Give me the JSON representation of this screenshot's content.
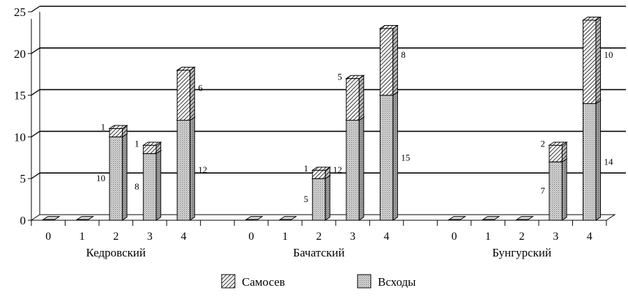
{
  "chart_data": {
    "type": "bar",
    "stacked": true,
    "three_d": true,
    "grid": true,
    "ylim": [
      0,
      25
    ],
    "yticks": [
      0,
      5,
      10,
      15,
      20,
      25
    ],
    "legend_position": "bottom",
    "groups": [
      {
        "name": "Кедровский",
        "categories": [
          "0",
          "1",
          "2",
          "3",
          "4"
        ],
        "Всходы": [
          0,
          0,
          10,
          8,
          12
        ],
        "Самосев": [
          0,
          0,
          1,
          1,
          6
        ]
      },
      {
        "name": "Бачатский",
        "categories": [
          "0",
          "1",
          "2",
          "3",
          "4"
        ],
        "Всходы": [
          0,
          0,
          5,
          12,
          15
        ],
        "Самосев": [
          0,
          0,
          1,
          5,
          8
        ]
      },
      {
        "name": "Бунгурский",
        "categories": [
          "0",
          "1",
          "2",
          "3",
          "4"
        ],
        "Всходы": [
          0,
          0,
          0,
          7,
          14
        ],
        "Самосев": [
          0,
          0,
          0,
          2,
          10
        ]
      }
    ],
    "series": [
      {
        "name": "Всходы",
        "pattern": "dots",
        "color": "#cfcfcf"
      },
      {
        "name": "Самосев",
        "pattern": "diagonal-hatch",
        "color": "#ffffff"
      }
    ]
  },
  "legend": {
    "items": [
      {
        "label": "Самосев",
        "pattern": "diagonal-hatch"
      },
      {
        "label": "Всходы",
        "pattern": "dots"
      }
    ]
  }
}
